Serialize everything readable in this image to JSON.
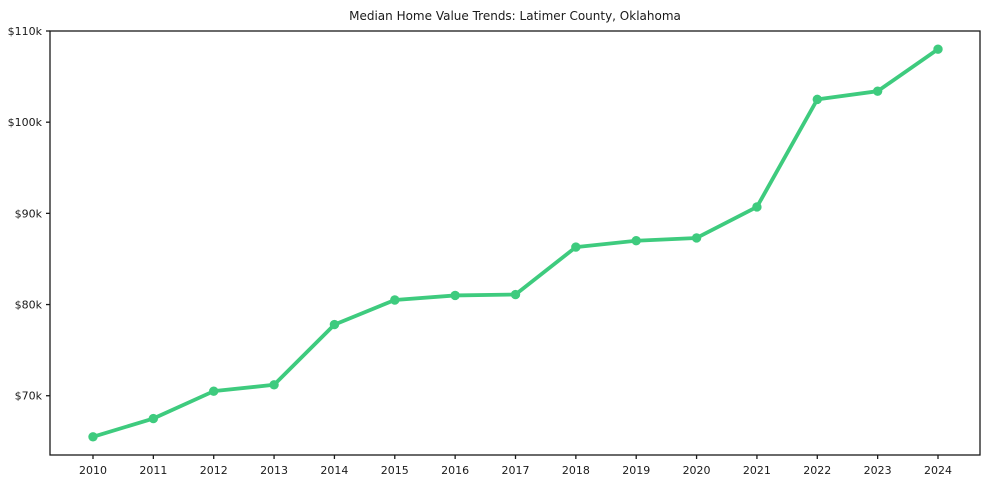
{
  "chart_data": {
    "type": "line",
    "title": "Median Home Value Trends: Latimer County, Oklahoma",
    "series_name": "Median home value",
    "x": [
      2010,
      2011,
      2012,
      2013,
      2014,
      2015,
      2016,
      2017,
      2018,
      2019,
      2020,
      2021,
      2022,
      2023,
      2024
    ],
    "values_thousands": [
      65.5,
      67.5,
      70.5,
      71.2,
      77.8,
      80.5,
      81.0,
      81.1,
      86.3,
      87.0,
      87.3,
      90.7,
      102.5,
      103.4,
      108.0
    ],
    "unit": "USD thousands",
    "xtick_labels": [
      "2010",
      "2011",
      "2012",
      "2013",
      "2014",
      "2015",
      "2016",
      "2017",
      "2018",
      "2019",
      "2020",
      "2021",
      "2022",
      "2023",
      "2024"
    ],
    "yticks": [
      {
        "value": 70,
        "label": "$70k"
      },
      {
        "value": 80,
        "label": "$80k"
      },
      {
        "value": 90,
        "label": "$90k"
      },
      {
        "value": 100,
        "label": "$100k"
      },
      {
        "value": 110,
        "label": "$110k"
      }
    ],
    "ylim": [
      63.5,
      110
    ],
    "grid": false,
    "legend_position": "none",
    "line_color": "#3ecb7e",
    "marker_color": "#3ecb7e",
    "axis_color": "#1a1a1a"
  }
}
